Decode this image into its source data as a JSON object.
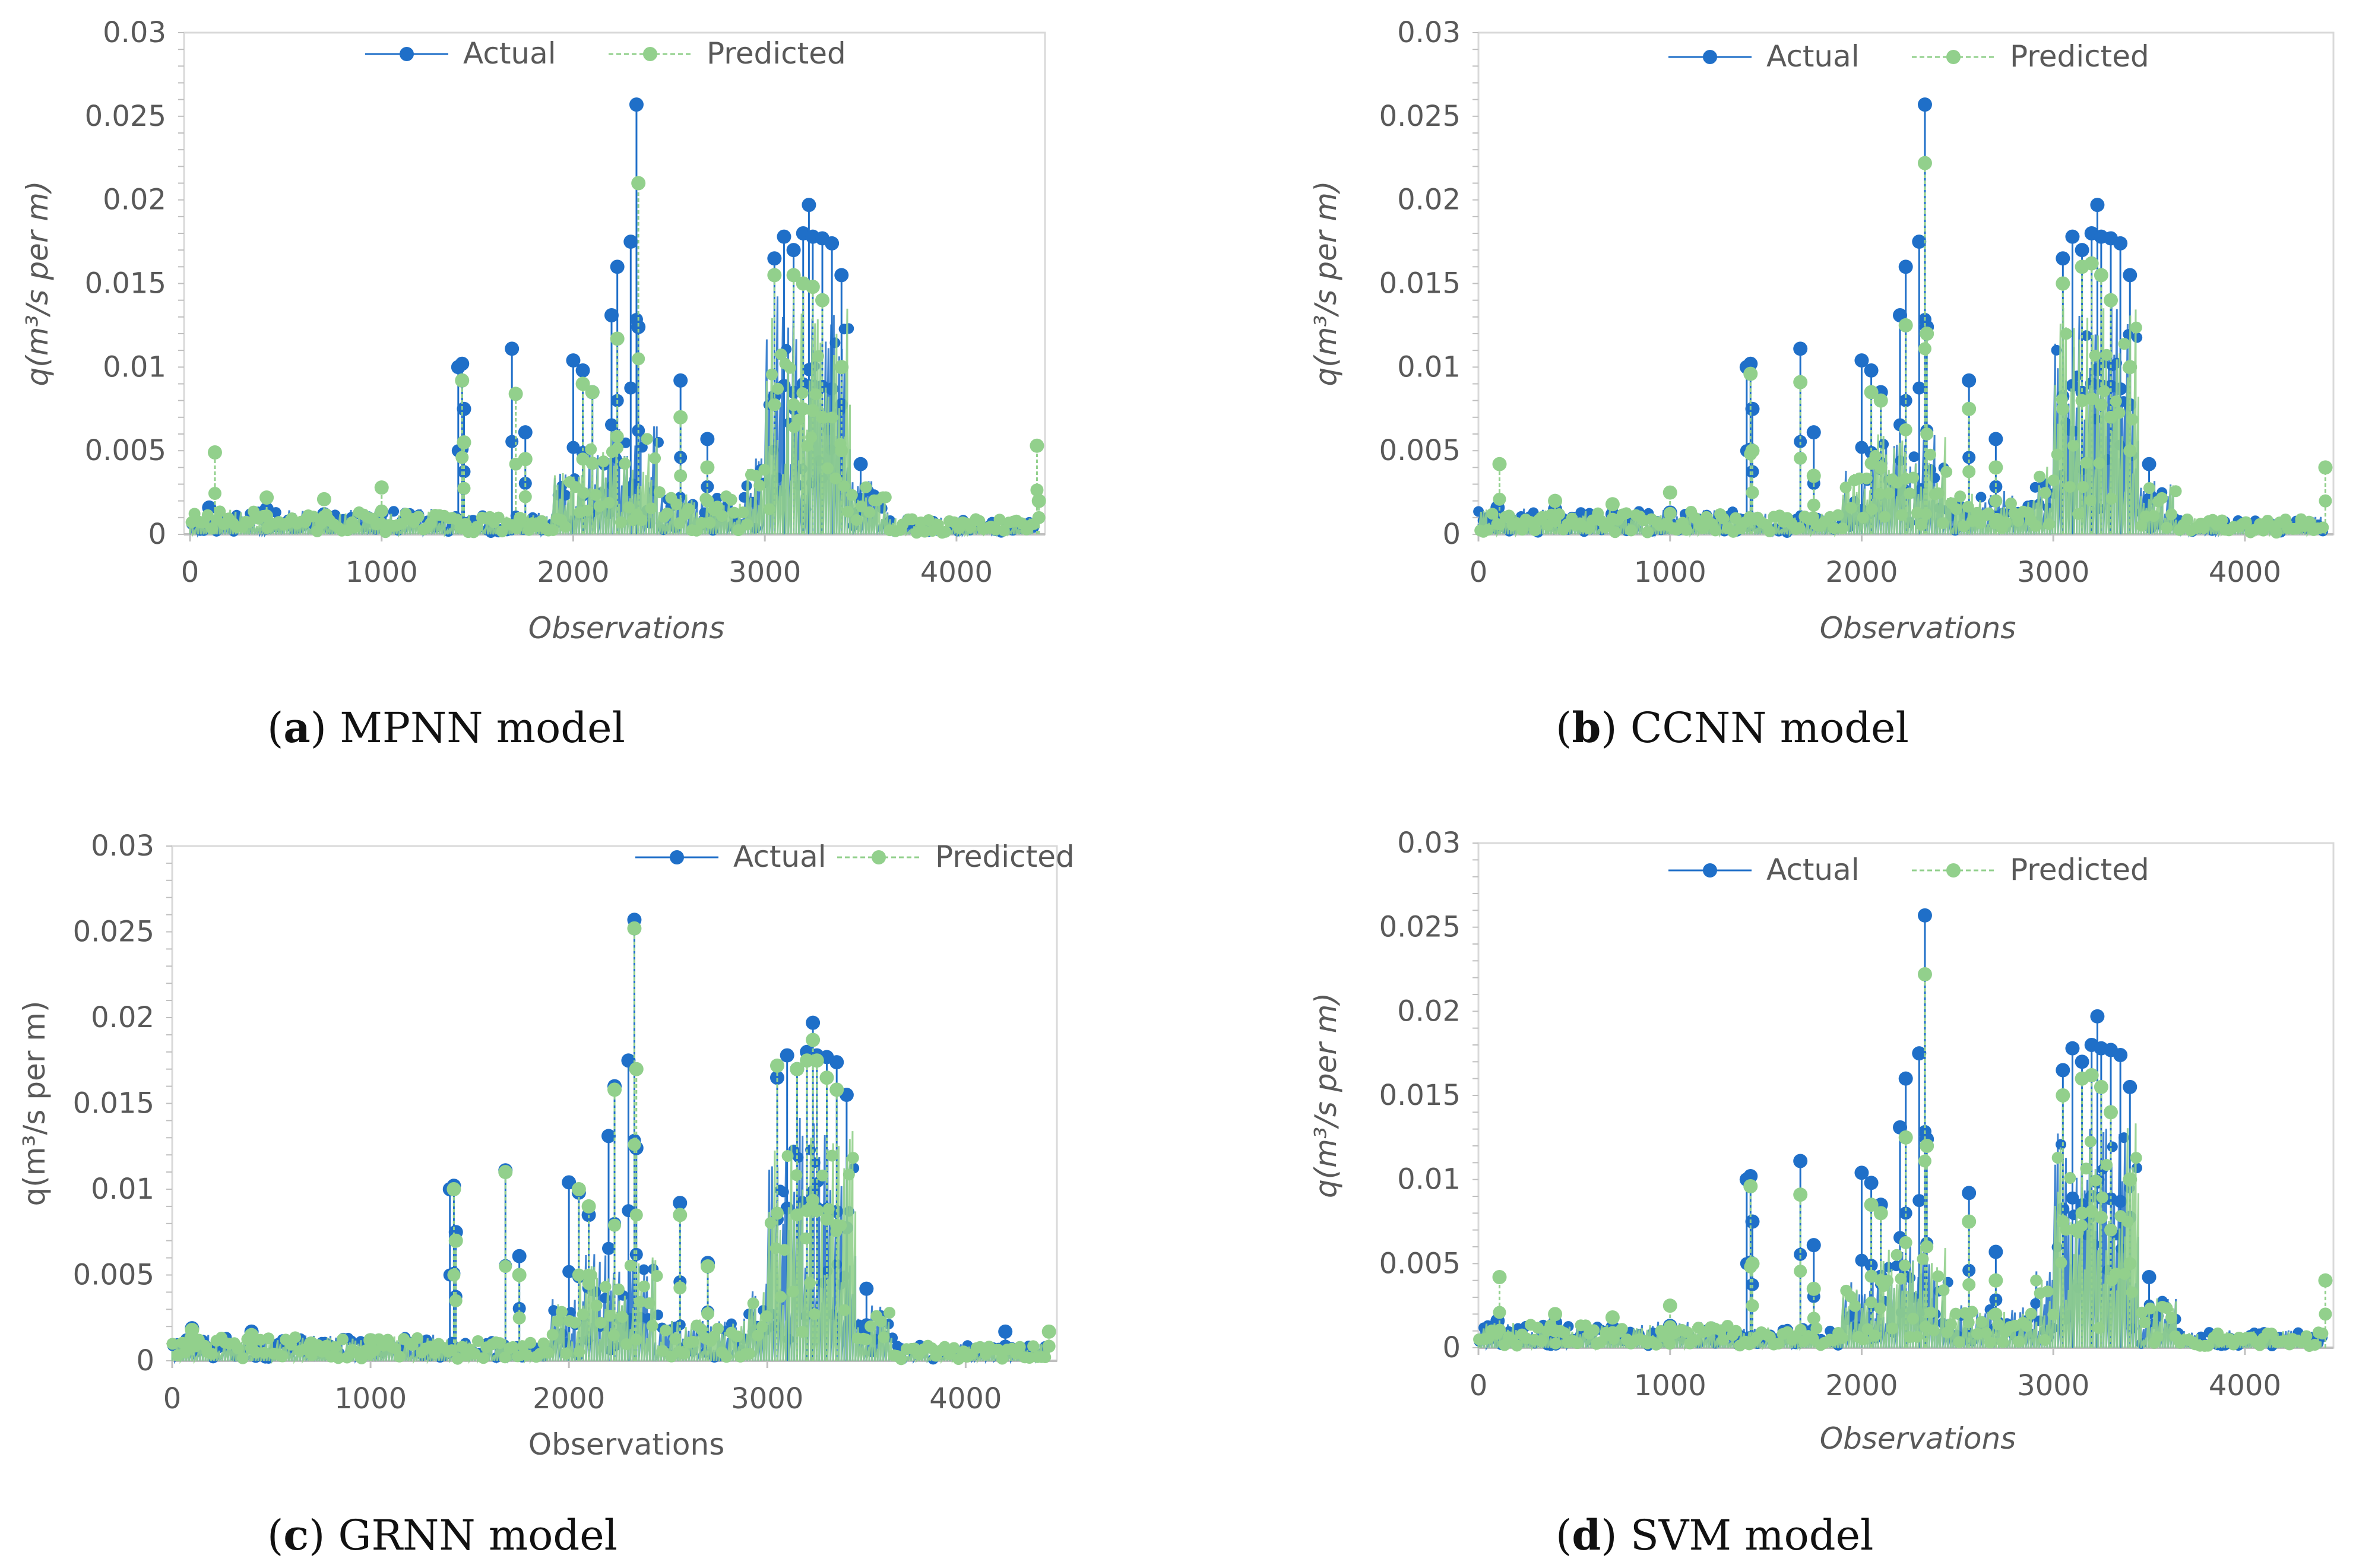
{
  "figure": {
    "panels": [
      {
        "caption": {
          "letter": "a",
          "open": "(",
          "close": ")",
          "text": "MPNN model"
        },
        "legend": {
          "actual": "Actual",
          "predicted": "Predicted"
        }
      },
      {
        "caption": {
          "letter": "b",
          "open": "(",
          "close": ")",
          "text": "CCNN model"
        },
        "legend": {
          "actual": "Actual",
          "predicted": "Predicted"
        }
      },
      {
        "caption": {
          "letter": "c",
          "open": "(",
          "close": ")",
          "text": "GRNN model"
        },
        "legend": {
          "actual": "Actual",
          "predicted": "Predicted"
        }
      },
      {
        "caption": {
          "letter": "d",
          "open": "(",
          "close": ")",
          "text": "SVM model"
        },
        "legend": {
          "actual": "Actual",
          "predicted": "Predicted"
        }
      }
    ]
  },
  "colors": {
    "actual": "#1f6fc8",
    "predicted": "#92d08c",
    "axis": "#bfbfbf",
    "text": "#595959"
  },
  "chart_data": [
    {
      "type": "line",
      "title": "MPNN model",
      "xlabel": "Observations",
      "ylabel": "q(m³/s per m)",
      "xlim": [
        0,
        4400
      ],
      "ylim": [
        0,
        0.03
      ],
      "xticks": [
        "0",
        "1000",
        "2000",
        "3000",
        "4000"
      ],
      "yticks": [
        "0",
        "0.005",
        "0.01",
        "0.015",
        "0.02",
        "0.025",
        "0.03"
      ],
      "series": [
        {
          "name": "Actual",
          "x": [
            100,
            400,
            700,
            1000,
            1400,
            1420,
            1430,
            1680,
            1750,
            2000,
            2050,
            2100,
            2200,
            2230,
            2300,
            2330,
            2340,
            2560,
            2700,
            3050,
            3100,
            3150,
            3200,
            3230,
            3250,
            3300,
            3350,
            3400,
            3500
          ],
          "values": [
            0.0016,
            0.0015,
            0.0012,
            0.0013,
            0.01,
            0.0102,
            0.0075,
            0.0111,
            0.0061,
            0.0104,
            0.0098,
            0.0085,
            0.0131,
            0.016,
            0.0175,
            0.0257,
            0.0124,
            0.0092,
            0.0057,
            0.0165,
            0.0178,
            0.017,
            0.018,
            0.0197,
            0.0178,
            0.0177,
            0.0174,
            0.0155,
            0.0042
          ]
        },
        {
          "name": "Predicted",
          "x": [
            130,
            400,
            700,
            1000,
            1420,
            1430,
            1700,
            1750,
            2050,
            2100,
            2230,
            2340,
            2560,
            2700,
            3050,
            3150,
            3200,
            3250,
            3300,
            3400,
            4420,
            4430
          ],
          "values": [
            0.0049,
            0.0022,
            0.0021,
            0.0028,
            0.0092,
            0.0055,
            0.0084,
            0.0045,
            0.009,
            0.0085,
            0.0117,
            0.021,
            0.007,
            0.004,
            0.0155,
            0.0155,
            0.015,
            0.0148,
            0.014,
            0.01,
            0.0053,
            0.002
          ]
        }
      ]
    },
    {
      "type": "line",
      "title": "CCNN model",
      "xlabel": "Observations",
      "ylabel": "q(m³/s per m)",
      "xlim": [
        0,
        4400
      ],
      "ylim": [
        0,
        0.03
      ],
      "xticks": [
        "0",
        "1000",
        "2000",
        "3000",
        "4000"
      ],
      "yticks": [
        "0",
        "0.005",
        "0.01",
        "0.015",
        "0.02",
        "0.025",
        "0.03"
      ],
      "series": [
        {
          "name": "Actual",
          "x": [
            100,
            400,
            700,
            1000,
            1400,
            1420,
            1430,
            1680,
            1750,
            2000,
            2050,
            2100,
            2200,
            2230,
            2300,
            2330,
            2340,
            2560,
            2700,
            3050,
            3100,
            3150,
            3200,
            3230,
            3250,
            3300,
            3350,
            3400,
            3500
          ],
          "values": [
            0.0016,
            0.0015,
            0.0012,
            0.0013,
            0.01,
            0.0102,
            0.0075,
            0.0111,
            0.0061,
            0.0104,
            0.0098,
            0.0085,
            0.0131,
            0.016,
            0.0175,
            0.0257,
            0.0124,
            0.0092,
            0.0057,
            0.0165,
            0.0178,
            0.017,
            0.018,
            0.0197,
            0.0178,
            0.0177,
            0.0174,
            0.0155,
            0.0042
          ]
        },
        {
          "name": "Predicted",
          "x": [
            110,
            400,
            700,
            1000,
            1420,
            1430,
            1680,
            1750,
            2050,
            2100,
            2230,
            2330,
            2340,
            2560,
            2700,
            3050,
            3150,
            3200,
            3250,
            3300,
            3400,
            4420
          ],
          "values": [
            0.0042,
            0.002,
            0.0018,
            0.0025,
            0.0096,
            0.005,
            0.0091,
            0.0035,
            0.0085,
            0.008,
            0.0125,
            0.0222,
            0.012,
            0.0075,
            0.004,
            0.015,
            0.016,
            0.0162,
            0.0155,
            0.014,
            0.01,
            0.004
          ]
        }
      ]
    },
    {
      "type": "line",
      "title": "GRNN model",
      "xlabel": "Observations",
      "ylabel": "q(m³/s per m)",
      "xlim": [
        0,
        4400
      ],
      "ylim": [
        0,
        0.03
      ],
      "xticks": [
        "0",
        "1000",
        "2000",
        "3000",
        "4000"
      ],
      "yticks": [
        "0",
        "0.005",
        "0.01",
        "0.015",
        "0.02",
        "0.025",
        "0.03"
      ],
      "series": [
        {
          "name": "Actual",
          "x": [
            100,
            400,
            700,
            1000,
            1400,
            1420,
            1430,
            1680,
            1750,
            2000,
            2050,
            2100,
            2200,
            2230,
            2300,
            2330,
            2340,
            2560,
            2700,
            3050,
            3100,
            3150,
            3200,
            3230,
            3250,
            3300,
            3350,
            3400,
            3500,
            4200
          ],
          "values": [
            0.0019,
            0.0017,
            0.001,
            0.0012,
            0.01,
            0.0102,
            0.0075,
            0.0111,
            0.0061,
            0.0104,
            0.0098,
            0.0085,
            0.0131,
            0.016,
            0.0175,
            0.0257,
            0.0124,
            0.0092,
            0.0057,
            0.0165,
            0.0178,
            0.017,
            0.018,
            0.0197,
            0.0178,
            0.0177,
            0.0174,
            0.0155,
            0.0042,
            0.0017
          ]
        },
        {
          "name": "Predicted",
          "x": [
            100,
            400,
            700,
            1000,
            1420,
            1430,
            1680,
            1750,
            2050,
            2100,
            2230,
            2330,
            2340,
            2560,
            2700,
            3050,
            3150,
            3200,
            3230,
            3250,
            3300,
            3350,
            4420
          ],
          "values": [
            0.0018,
            0.0015,
            0.001,
            0.0012,
            0.01,
            0.007,
            0.011,
            0.005,
            0.01,
            0.009,
            0.0158,
            0.0252,
            0.017,
            0.0085,
            0.0055,
            0.0172,
            0.017,
            0.0175,
            0.0187,
            0.0175,
            0.0165,
            0.0158,
            0.0017
          ]
        }
      ]
    },
    {
      "type": "line",
      "title": "SVM model",
      "xlabel": "Observations",
      "ylabel": "q(m³/s per m)",
      "xlim": [
        0,
        4400
      ],
      "ylim": [
        0,
        0.03
      ],
      "xticks": [
        "0",
        "1000",
        "2000",
        "3000",
        "4000"
      ],
      "yticks": [
        "0",
        "0.005",
        "0.01",
        "0.015",
        "0.02",
        "0.025",
        "0.03"
      ],
      "series": [
        {
          "name": "Actual",
          "x": [
            100,
            400,
            700,
            1000,
            1400,
            1420,
            1430,
            1680,
            1750,
            2000,
            2050,
            2100,
            2200,
            2230,
            2300,
            2330,
            2340,
            2560,
            2700,
            3050,
            3100,
            3150,
            3200,
            3230,
            3250,
            3300,
            3350,
            3400,
            3500
          ],
          "values": [
            0.0016,
            0.0015,
            0.0012,
            0.0013,
            0.01,
            0.0102,
            0.0075,
            0.0111,
            0.0061,
            0.0104,
            0.0098,
            0.0085,
            0.0131,
            0.016,
            0.0175,
            0.0257,
            0.0124,
            0.0092,
            0.0057,
            0.0165,
            0.0178,
            0.017,
            0.018,
            0.0197,
            0.0178,
            0.0177,
            0.0174,
            0.0155,
            0.0042
          ]
        },
        {
          "name": "Predicted",
          "x": [
            110,
            400,
            700,
            1000,
            1420,
            1430,
            1680,
            1750,
            2050,
            2100,
            2230,
            2330,
            2340,
            2560,
            2700,
            3050,
            3150,
            3200,
            3250,
            3300,
            3400,
            4420
          ],
          "values": [
            0.0042,
            0.002,
            0.0018,
            0.0025,
            0.0096,
            0.005,
            0.0091,
            0.0035,
            0.0085,
            0.008,
            0.0125,
            0.0222,
            0.012,
            0.0075,
            0.004,
            0.015,
            0.016,
            0.0162,
            0.0155,
            0.014,
            0.01,
            0.004
          ]
        }
      ]
    }
  ]
}
